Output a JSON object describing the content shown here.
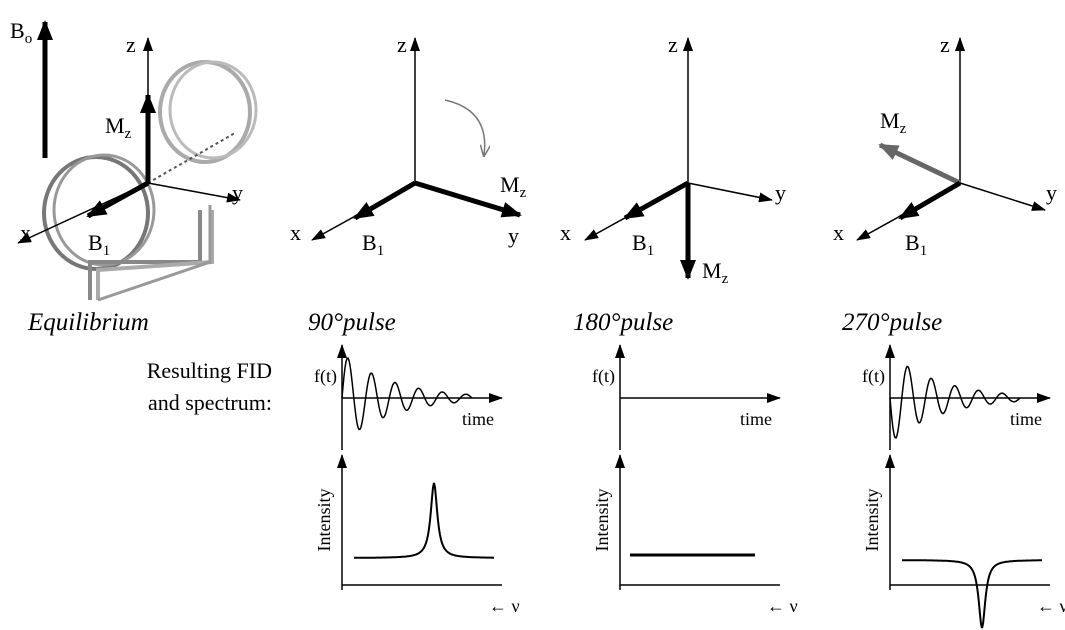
{
  "b0": {
    "text": "B",
    "sub": "o"
  },
  "panels": [
    {
      "caption": "Equilibrium",
      "z": "z",
      "x": "x",
      "y": "y",
      "mz": {
        "text": "M",
        "sub": "z"
      },
      "b1": {
        "text": "B",
        "sub": "1"
      }
    },
    {
      "caption": "90°pulse",
      "z": "z",
      "x": "x",
      "y": "y",
      "mz": {
        "text": "M",
        "sub": "z"
      },
      "b1": {
        "text": "B",
        "sub": "1"
      }
    },
    {
      "caption": "180°pulse",
      "z": "z",
      "x": "x",
      "y": "y",
      "mz": {
        "text": "M",
        "sub": "z"
      },
      "b1": {
        "text": "B",
        "sub": "1"
      }
    },
    {
      "caption": "270°pulse",
      "z": "z",
      "x": "x",
      "y": "y",
      "mz": {
        "text": "M",
        "sub": "z"
      },
      "b1": {
        "text": "B",
        "sub": "1"
      }
    }
  ],
  "results_label": [
    "Resulting FID",
    "and spectrum:"
  ],
  "plots": [
    {
      "fid_y": "f(t)",
      "fid_x": "time",
      "spec_y": "Intensity",
      "spec_x": "← ν"
    },
    {
      "fid_y": "f(t)",
      "fid_x": "time",
      "spec_y": "Intensity",
      "spec_x": "← ν"
    },
    {
      "fid_y": "f(t)",
      "fid_x": "time",
      "spec_y": "Intensity",
      "spec_x": "← ν"
    }
  ]
}
